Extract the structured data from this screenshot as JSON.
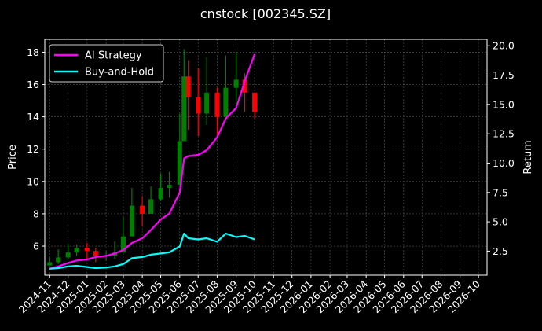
{
  "chart_data": {
    "type": "line",
    "title": "cnstock [002345.SZ]",
    "xlabel": "",
    "ylabel_left": "Price",
    "ylabel_right": "Return",
    "x_ticks": [
      "2024-11",
      "2024-12",
      "2025-01",
      "2025-02",
      "2025-03",
      "2025-04",
      "2025-05",
      "2025-06",
      "2025-07",
      "2025-08",
      "2025-09",
      "2025-10",
      "2025-11",
      "2025-12",
      "2026-01",
      "2026-02",
      "2026-03",
      "2026-04",
      "2026-05",
      "2026-06",
      "2026-07",
      "2026-08",
      "2026-09",
      "2026-10"
    ],
    "y_left_ticks": [
      "6",
      "8",
      "10",
      "12",
      "14",
      "16",
      "18"
    ],
    "y_right_ticks": [
      "2.5",
      "5.0",
      "7.5",
      "10.0",
      "12.5",
      "15.0",
      "17.5",
      "20.0"
    ],
    "y_left_lim": [
      4.2,
      18.8
    ],
    "y_right_lim": [
      0.45,
      20.55
    ],
    "x_lim": [
      "2024-10-24",
      "2026-10-15"
    ],
    "grid": true,
    "legend_position": "top-left",
    "price_candles": {
      "x": [
        "2024-11-01",
        "2024-11-15",
        "2024-12-01",
        "2024-12-15",
        "2025-01-01",
        "2025-01-15",
        "2025-02-01",
        "2025-02-15",
        "2025-03-01",
        "2025-03-15",
        "2025-04-01",
        "2025-04-15",
        "2025-05-01",
        "2025-05-15",
        "2025-06-01",
        "2025-06-08",
        "2025-06-15",
        "2025-07-01",
        "2025-07-15",
        "2025-08-01",
        "2025-08-15",
        "2025-09-01",
        "2025-09-15",
        "2025-10-01"
      ],
      "close": [
        5.0,
        5.3,
        5.6,
        5.9,
        5.7,
        5.4,
        5.4,
        5.6,
        6.6,
        8.5,
        8.0,
        8.9,
        9.6,
        9.8,
        12.5,
        16.5,
        15.2,
        14.2,
        15.5,
        14.0,
        15.8,
        16.3,
        15.5,
        14.3
      ],
      "high": [
        5.3,
        5.8,
        6.1,
        6.1,
        6.2,
        5.9,
        5.7,
        6.3,
        7.8,
        9.6,
        9.1,
        9.7,
        10.5,
        10.6,
        14.2,
        18.2,
        17.5,
        17.0,
        17.7,
        15.8,
        17.8,
        18.0,
        16.7,
        15.5
      ],
      "low": [
        4.8,
        4.9,
        5.2,
        5.4,
        5.2,
        5.0,
        5.1,
        5.2,
        5.8,
        7.6,
        7.2,
        8.1,
        8.8,
        9.0,
        10.0,
        13.8,
        13.2,
        12.8,
        13.5,
        12.9,
        14.1,
        14.8,
        14.3,
        13.9
      ],
      "up_color": "#008000",
      "down_color": "#ff0000"
    },
    "series": [
      {
        "name": "AI Strategy",
        "color": "#ff00ff",
        "x": [
          "2024-11-01",
          "2024-11-15",
          "2024-12-01",
          "2024-12-15",
          "2025-01-01",
          "2025-01-15",
          "2025-02-01",
          "2025-02-15",
          "2025-03-01",
          "2025-03-15",
          "2025-04-01",
          "2025-04-15",
          "2025-05-01",
          "2025-05-15",
          "2025-06-01",
          "2025-06-08",
          "2025-06-15",
          "2025-07-01",
          "2025-07-15",
          "2025-08-01",
          "2025-08-15",
          "2025-09-01",
          "2025-09-15",
          "2025-10-01"
        ],
        "values": [
          1.0,
          1.2,
          1.5,
          1.7,
          1.8,
          2.0,
          2.1,
          2.3,
          2.6,
          3.2,
          3.6,
          4.3,
          5.2,
          5.7,
          7.5,
          10.4,
          10.6,
          10.7,
          11.1,
          12.2,
          13.8,
          14.7,
          17.0,
          19.3
        ]
      },
      {
        "name": "Buy-and-Hold",
        "color": "#00ffff",
        "x": [
          "2024-11-01",
          "2024-11-15",
          "2024-12-01",
          "2024-12-15",
          "2025-01-01",
          "2025-01-15",
          "2025-02-01",
          "2025-02-15",
          "2025-03-01",
          "2025-03-15",
          "2025-04-01",
          "2025-04-15",
          "2025-05-01",
          "2025-05-15",
          "2025-06-01",
          "2025-06-08",
          "2025-06-15",
          "2025-07-01",
          "2025-07-15",
          "2025-08-01",
          "2025-08-15",
          "2025-09-01",
          "2025-09-15",
          "2025-10-01"
        ],
        "values": [
          1.0,
          1.05,
          1.2,
          1.25,
          1.15,
          1.05,
          1.1,
          1.2,
          1.4,
          1.9,
          2.0,
          2.2,
          2.3,
          2.4,
          2.9,
          4.0,
          3.6,
          3.5,
          3.6,
          3.3,
          4.0,
          3.7,
          3.8,
          3.5
        ]
      }
    ]
  }
}
